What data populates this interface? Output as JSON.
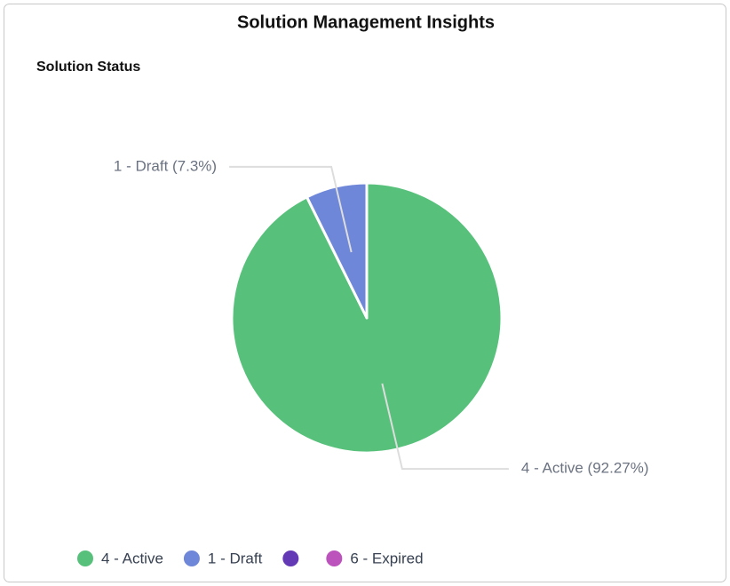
{
  "header": {
    "title": "Solution Management Insights"
  },
  "chart_data": {
    "type": "pie",
    "title": "Solution Status",
    "categories": [
      "4 - Active",
      "1 - Draft",
      null,
      "6 - Expired"
    ],
    "values": [
      92.27,
      7.3,
      0,
      0
    ],
    "value_labels": [
      "4 - Active (92.27%)",
      "1 - Draft (7.3%)",
      null,
      null
    ],
    "colors": [
      "#57c17b",
      "#6f87d8",
      "#6439b5",
      "#bc52bc"
    ],
    "legend": "bottom-left"
  }
}
